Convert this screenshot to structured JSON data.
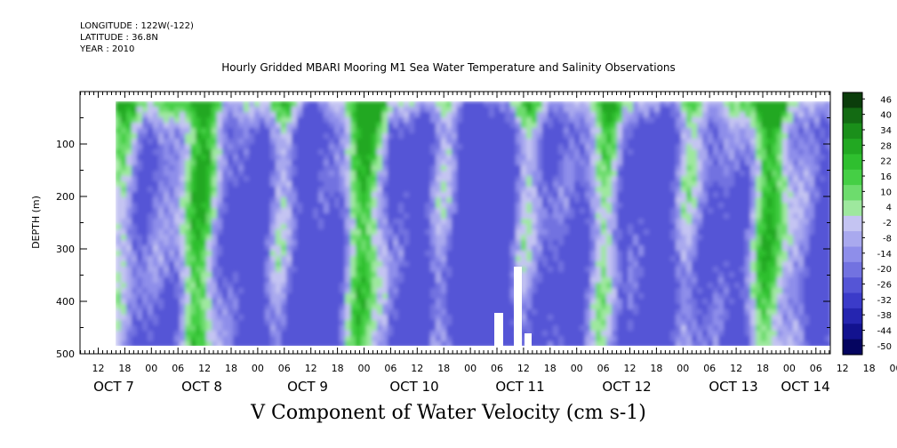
{
  "header": {
    "longitude": "LONGITUDE : 122W(-122)",
    "latitude": "LATITUDE : 36.8N",
    "year": "YEAR : 2010"
  },
  "chart_data": {
    "type": "heatmap",
    "title": "Hourly Gridded MBARI Mooring M1 Sea Water Temperature and Salinity Observations",
    "xlabel": "V Component of Water Velocity (cm s-1)",
    "ylabel": "DEPTH (m)",
    "y_axis": {
      "range": [
        0,
        500
      ],
      "inverted": true,
      "ticks": [
        100,
        200,
        300,
        400,
        500
      ]
    },
    "x_axis": {
      "hour_labels": [
        "12",
        "18",
        "00",
        "06",
        "12",
        "18",
        "00",
        "06",
        "12",
        "18",
        "00",
        "06",
        "12",
        "18",
        "00",
        "06",
        "12",
        "18",
        "00",
        "06",
        "12",
        "18",
        "00",
        "06",
        "12",
        "18",
        "00",
        "06",
        "12",
        "18",
        "00",
        "06"
      ],
      "day_labels": [
        "OCT  7",
        "OCT  8",
        "OCT  9",
        "OCT 10",
        "OCT 11",
        "OCT 12",
        "OCT 13",
        "OCT 14"
      ]
    },
    "colorbar": {
      "labels": [
        "46",
        "40",
        "34",
        "28",
        "22",
        "16",
        "10",
        "4",
        "-2",
        "-8",
        "-14",
        "-20",
        "-26",
        "-32",
        "-38",
        "-44",
        "-50"
      ],
      "colors": [
        "#0b3d0b",
        "#136b13",
        "#1a8f1a",
        "#22a822",
        "#2fbf2f",
        "#45cf45",
        "#6ddc6d",
        "#9ee89e",
        "#c4c4f2",
        "#a9a9ee",
        "#8e8eea",
        "#7272e0",
        "#5555d6",
        "#3b3bc9",
        "#2525b0",
        "#12128f",
        "#050560"
      ]
    },
    "grid": false
  }
}
